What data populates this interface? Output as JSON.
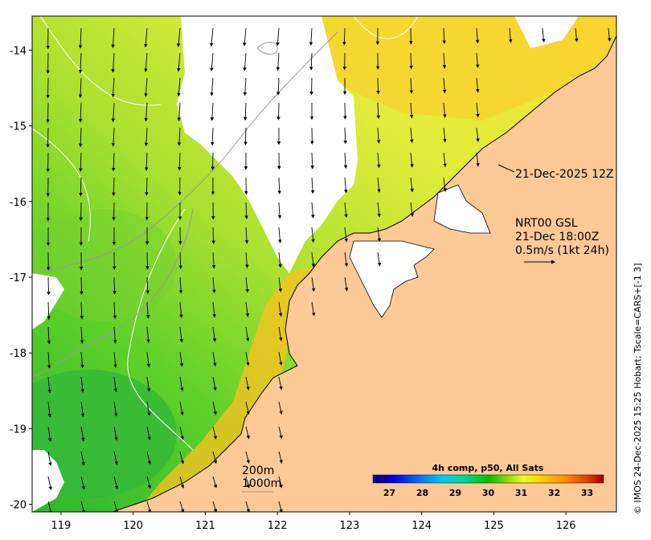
{
  "map": {
    "x_ticks": [
      "119",
      "120",
      "121",
      "122",
      "123",
      "124",
      "125",
      "126"
    ],
    "y_ticks": [
      "-14",
      "-15",
      "-16",
      "-17",
      "-18",
      "-19",
      "-20"
    ],
    "lon_range": [
      118.6,
      126.7
    ],
    "lat_range": [
      -20.1,
      -13.55
    ]
  },
  "annotations": {
    "track_date": "21-Dec-2025 12Z",
    "model_name": "NRT00 GSL",
    "model_time": "21-Dec 18:00Z",
    "vector_scale": "0.5m/s (1kt 24h)"
  },
  "depth_legend": {
    "shallow": "200m",
    "deep": "1000m"
  },
  "colorbar": {
    "title": "4h comp, p50, All Sats",
    "ticks": [
      "27",
      "28",
      "29",
      "30",
      "31",
      "32",
      "33"
    ],
    "range": [
      26.5,
      33.5
    ],
    "colors": [
      "#00007a",
      "#0000e0",
      "#0070ff",
      "#00c8ff",
      "#00d890",
      "#00c000",
      "#80e000",
      "#e8ff20",
      "#ffd000",
      "#ff9000",
      "#e04000",
      "#a00000"
    ]
  },
  "credit": "© IMOS 24-Dec-2025 15:25 Hobart; Tscale=CARS+[-1 3]",
  "colors": {
    "land": "#fdc997",
    "no_data": "#ffffff",
    "sst_green": "#4cc82a",
    "sst_yellow": "#d8ea3a",
    "sst_orange": "#ffc000"
  }
}
